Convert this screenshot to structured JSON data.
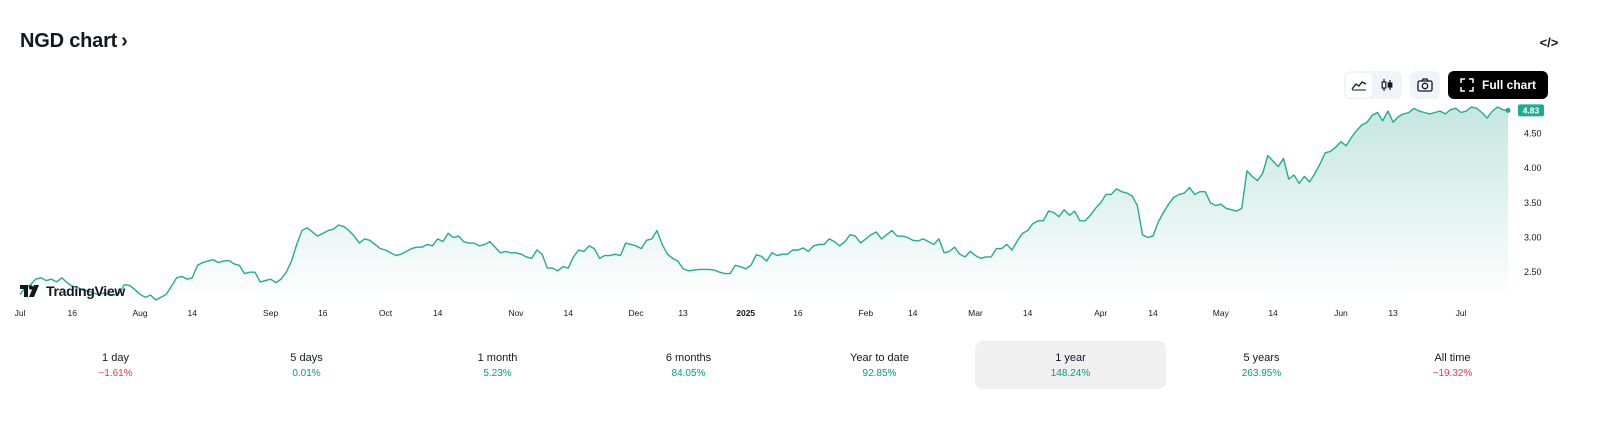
{
  "header": {
    "title": "NGD chart",
    "chevron": "›",
    "embed_icon": "</>"
  },
  "toolbar": {
    "chart_type_buttons": [
      {
        "name": "line-chart-icon",
        "active": true
      },
      {
        "name": "candles-chart-icon",
        "active": false
      }
    ],
    "snapshot_icon": "camera-icon",
    "full_chart_label": "Full chart",
    "full_chart_icon": "fullscreen-icon"
  },
  "brand": {
    "name": "TradingView"
  },
  "colors": {
    "line": "#22ab94",
    "fill_top": "#c5e6df",
    "fill_bottom": "#ffffff",
    "positive": "#089981",
    "negative": "#f23645",
    "price_tag": "#22ab94"
  },
  "chart_data": {
    "type": "area",
    "ylim": [
      2.1,
      4.98
    ],
    "last_price": "4.83",
    "y_ticks": [
      4.5,
      4.0,
      3.5,
      3.0,
      2.5
    ],
    "y_tick_labels": [
      "4.50",
      "4.00",
      "3.50",
      "3.00",
      "2.50"
    ],
    "x_tick_labels": [
      "Jul",
      "16",
      "Aug",
      "14",
      "Sep",
      "16",
      "Oct",
      "14",
      "Nov",
      "14",
      "Dec",
      "13",
      "2025",
      "16",
      "Feb",
      "14",
      "Mar",
      "14",
      "Apr",
      "14",
      "May",
      "14",
      "Jun",
      "13",
      "Jul"
    ],
    "x_tick_index": [
      0,
      10,
      23,
      33,
      48,
      58,
      70,
      80,
      95,
      105,
      118,
      127,
      139,
      149,
      162,
      171,
      183,
      193,
      207,
      217,
      230,
      240,
      253,
      263,
      276
    ],
    "values": [
      2.18,
      2.28,
      2.32,
      2.4,
      2.42,
      2.38,
      2.4,
      2.36,
      2.42,
      2.35,
      2.3,
      2.28,
      2.25,
      2.23,
      2.2,
      2.18,
      2.2,
      2.18,
      2.17,
      2.2,
      2.32,
      2.31,
      2.25,
      2.18,
      2.14,
      2.17,
      2.1,
      2.14,
      2.18,
      2.3,
      2.42,
      2.44,
      2.4,
      2.42,
      2.6,
      2.64,
      2.66,
      2.68,
      2.64,
      2.66,
      2.67,
      2.62,
      2.6,
      2.48,
      2.5,
      2.5,
      2.36,
      2.38,
      2.4,
      2.35,
      2.4,
      2.5,
      2.66,
      2.9,
      3.1,
      3.14,
      3.08,
      3.02,
      3.06,
      3.1,
      3.12,
      3.18,
      3.16,
      3.1,
      3.02,
      2.92,
      2.98,
      2.96,
      2.9,
      2.84,
      2.82,
      2.78,
      2.74,
      2.76,
      2.8,
      2.84,
      2.86,
      2.86,
      2.9,
      2.88,
      2.98,
      2.94,
      3.06,
      3.0,
      3.02,
      2.94,
      2.92,
      2.92,
      2.88,
      2.9,
      2.94,
      2.86,
      2.78,
      2.8,
      2.78,
      2.78,
      2.76,
      2.72,
      2.7,
      2.82,
      2.76,
      2.56,
      2.56,
      2.52,
      2.58,
      2.56,
      2.72,
      2.82,
      2.8,
      2.88,
      2.84,
      2.7,
      2.74,
      2.74,
      2.76,
      2.74,
      2.92,
      2.9,
      2.88,
      2.84,
      2.96,
      2.98,
      3.1,
      2.9,
      2.76,
      2.7,
      2.66,
      2.55,
      2.52,
      2.53,
      2.54,
      2.54,
      2.54,
      2.53,
      2.5,
      2.48,
      2.48,
      2.6,
      2.58,
      2.55,
      2.6,
      2.75,
      2.73,
      2.66,
      2.78,
      2.74,
      2.76,
      2.76,
      2.82,
      2.82,
      2.85,
      2.8,
      2.88,
      2.9,
      2.9,
      2.98,
      2.94,
      2.88,
      2.94,
      3.04,
      3.02,
      2.92,
      2.98,
      3.04,
      3.08,
      2.98,
      3.04,
      3.1,
      3.02,
      3.02,
      3.0,
      2.96,
      2.95,
      2.98,
      2.94,
      2.9,
      2.98,
      2.78,
      2.8,
      2.86,
      2.76,
      2.72,
      2.8,
      2.74,
      2.7,
      2.72,
      2.72,
      2.84,
      2.84,
      2.9,
      2.82,
      2.95,
      3.06,
      3.1,
      3.2,
      3.24,
      3.24,
      3.38,
      3.36,
      3.3,
      3.4,
      3.32,
      3.38,
      3.24,
      3.24,
      3.32,
      3.42,
      3.5,
      3.62,
      3.62,
      3.7,
      3.66,
      3.64,
      3.6,
      3.46,
      3.04,
      3.0,
      3.02,
      3.22,
      3.36,
      3.48,
      3.58,
      3.62,
      3.64,
      3.72,
      3.62,
      3.66,
      3.66,
      3.5,
      3.46,
      3.48,
      3.42,
      3.4,
      3.38,
      3.42,
      3.96,
      3.88,
      3.82,
      3.92,
      4.18,
      4.1,
      4.02,
      4.14,
      3.84,
      3.9,
      3.78,
      3.88,
      3.8,
      3.92,
      4.06,
      4.22,
      4.24,
      4.3,
      4.38,
      4.32,
      4.44,
      4.54,
      4.62,
      4.66,
      4.76,
      4.8,
      4.68,
      4.82,
      4.66,
      4.74,
      4.78,
      4.8,
      4.86,
      4.82,
      4.8,
      4.78,
      4.8,
      4.82,
      4.78,
      4.84,
      4.86,
      4.8,
      4.82,
      4.88,
      4.86,
      4.8,
      4.72,
      4.82,
      4.88,
      4.84,
      4.83
    ]
  },
  "periods": [
    {
      "label": "1 day",
      "change": "−1.61%",
      "sign": "neg",
      "selected": false
    },
    {
      "label": "5 days",
      "change": "0.01%",
      "sign": "pos",
      "selected": false
    },
    {
      "label": "1 month",
      "change": "5.23%",
      "sign": "pos",
      "selected": false
    },
    {
      "label": "6 months",
      "change": "84.05%",
      "sign": "pos",
      "selected": false
    },
    {
      "label": "Year to date",
      "change": "92.85%",
      "sign": "pos",
      "selected": false
    },
    {
      "label": "1 year",
      "change": "148.24%",
      "sign": "pos",
      "selected": true
    },
    {
      "label": "5 years",
      "change": "263.95%",
      "sign": "pos",
      "selected": false
    },
    {
      "label": "All time",
      "change": "−19.32%",
      "sign": "neg",
      "selected": false
    }
  ]
}
